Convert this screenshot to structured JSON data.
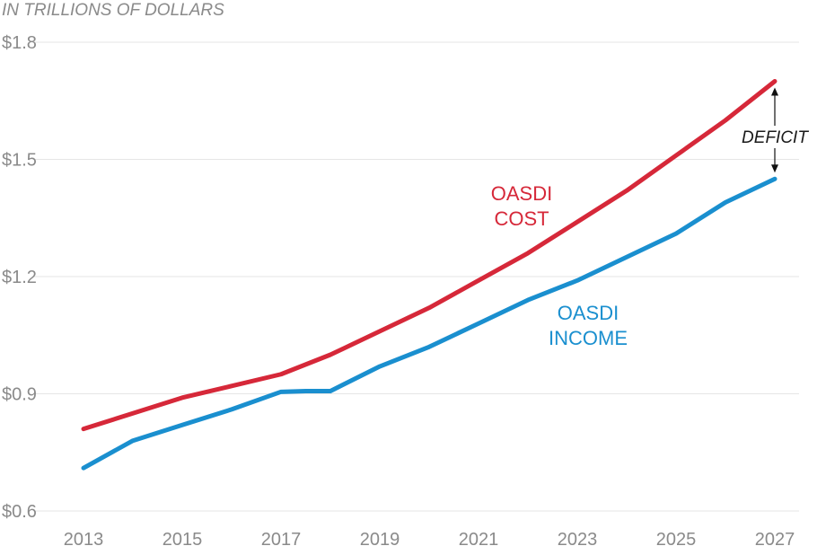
{
  "chart_data": {
    "type": "line",
    "unit_label": "IN TRILLIONS OF DOLLARS",
    "x": [
      2013,
      2014,
      2015,
      2016,
      2017,
      2018,
      2019,
      2020,
      2021,
      2022,
      2023,
      2024,
      2025,
      2026,
      2027
    ],
    "x_tick_labels": [
      "2013",
      "2015",
      "2017",
      "2019",
      "2021",
      "2023",
      "2025",
      "2027"
    ],
    "y_tick_labels": [
      "$0.6",
      "$0.9",
      "$1.2",
      "$1.5",
      "$1.8"
    ],
    "ylim": [
      0.6,
      1.8
    ],
    "grid": true,
    "series": [
      {
        "name": "OASDI COST",
        "label_lines": [
          "OASDI",
          "COST"
        ],
        "color": "#d62839",
        "x": [
          2013,
          2014,
          2015,
          2016,
          2017,
          2018,
          2019,
          2020,
          2021,
          2022,
          2023,
          2024,
          2025,
          2026,
          2027
        ],
        "values": [
          0.81,
          0.85,
          0.89,
          0.92,
          0.95,
          1.0,
          1.06,
          1.12,
          1.19,
          1.26,
          1.34,
          1.42,
          1.51,
          1.6,
          1.7
        ]
      },
      {
        "name": "OASDI INCOME",
        "label_lines": [
          "OASDI",
          "INCOME"
        ],
        "color": "#1a8fcf",
        "x": [
          2013,
          2014,
          2015,
          2016,
          2017,
          2017.5,
          2018,
          2019,
          2020,
          2021,
          2022,
          2023,
          2024,
          2025,
          2026,
          2027
        ],
        "values": [
          0.71,
          0.78,
          0.82,
          0.86,
          0.905,
          0.907,
          0.907,
          0.97,
          1.02,
          1.08,
          1.14,
          1.19,
          1.25,
          1.31,
          1.39,
          1.45
        ]
      }
    ],
    "annotation": {
      "text": "DEFICIT",
      "year": 2027
    }
  }
}
